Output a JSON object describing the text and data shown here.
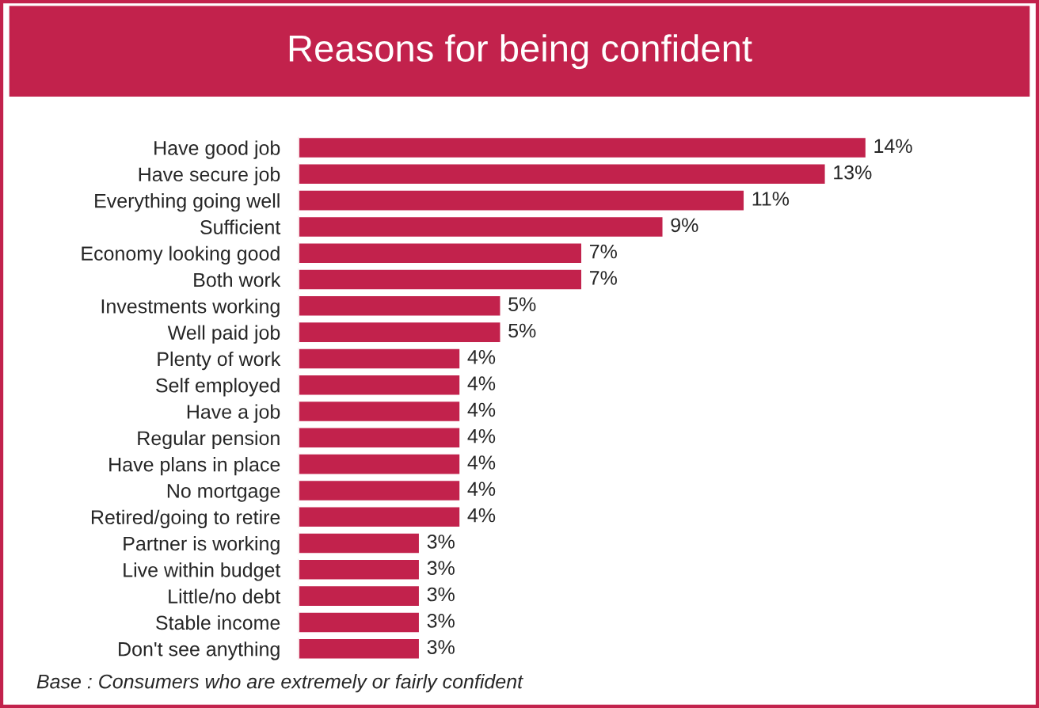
{
  "chart_data": {
    "type": "bar",
    "orientation": "horizontal",
    "title": "Reasons for being confident",
    "categories": [
      "Have good job",
      "Have secure job",
      "Everything going well",
      "Sufficient",
      "Economy looking good",
      "Both work",
      "Investments working",
      "Well paid job",
      "Plenty of work",
      "Self employed",
      "Have a job",
      "Regular pension",
      "Have plans in place",
      "No mortgage",
      "Retired/going to retire",
      "Partner is working",
      "Live within budget",
      "Little/no debt",
      "Stable income",
      "Don't see anything"
    ],
    "values": [
      14,
      13,
      11,
      9,
      7,
      7,
      5,
      5,
      4,
      4,
      4,
      4,
      4,
      4,
      4,
      3,
      3,
      3,
      3,
      3
    ],
    "value_labels": [
      "14%",
      "13%",
      "11%",
      "9%",
      "7%",
      "7%",
      "5%",
      "5%",
      "4%",
      "4%",
      "4%",
      "4%",
      "4%",
      "4%",
      "4%",
      "3%",
      "3%",
      "3%",
      "3%",
      "3%"
    ],
    "color": "#c2224c",
    "annotations": [
      "Base : Consumers who are extremely or fairly confident"
    ]
  }
}
